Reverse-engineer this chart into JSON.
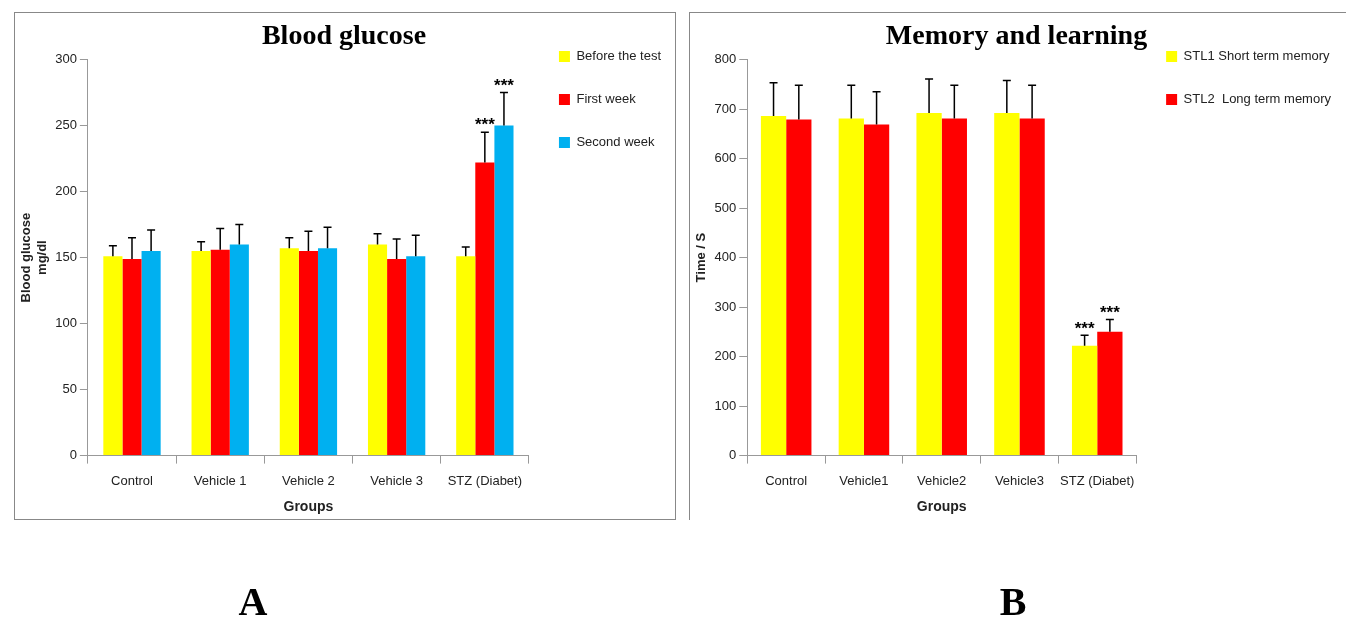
{
  "chart_data": [
    {
      "type": "bar",
      "title": "Blood glucose",
      "xlabel": "Groups",
      "ylabel": "Blood glucose\nmg/dl",
      "categories": [
        "Control",
        "Vehicle 1",
        "Vehicle 2",
        "Vehicle 3",
        "STZ (Diabet)"
      ],
      "series": [
        {
          "name": "Before the test",
          "color": "#ffff00",
          "values": [
            151,
            155,
            157,
            160,
            151
          ],
          "errors": [
            8,
            7,
            8,
            8,
            7
          ]
        },
        {
          "name": "First week",
          "color": "#ff0000",
          "values": [
            149,
            156,
            155,
            149,
            222
          ],
          "errors": [
            16,
            16,
            15,
            15,
            23
          ]
        },
        {
          "name": "Second week",
          "color": "#00b0f0",
          "values": [
            155,
            160,
            157,
            151,
            250
          ],
          "errors": [
            16,
            15,
            16,
            16,
            25
          ]
        }
      ],
      "ylim": [
        0,
        300
      ],
      "yticks": [
        0,
        50,
        100,
        150,
        200,
        250,
        300
      ],
      "legend": "right",
      "annotations": [
        {
          "text": "***",
          "x": "STZ (Diabet)",
          "y": 245
        },
        "***",
        "A"
      ]
    },
    {
      "type": "bar",
      "title": "Memory and learning",
      "xlabel": "Groups",
      "ylabel": "Time / S",
      "categories": [
        "Control",
        "Vehicle1",
        "Vehicle2",
        "Vehicle3",
        "STZ (Diabet)"
      ],
      "series": [
        {
          "name": "STL1 Short term memory",
          "color": "#ffff00",
          "values": [
            686,
            681,
            692,
            692,
            222
          ],
          "errors": [
            67,
            67,
            69,
            66,
            21
          ]
        },
        {
          "name": "STL2  Long term memory",
          "color": "#ff0000",
          "values": [
            679,
            669,
            681,
            681,
            250
          ],
          "errors": [
            69,
            66,
            67,
            67,
            25
          ]
        }
      ],
      "ylim": [
        0,
        800
      ],
      "yticks": [
        0,
        100,
        200,
        300,
        400,
        500,
        600,
        700,
        800
      ],
      "legend": "right",
      "annotations": [
        {
          "text": "***",
          "x": "STZ (Diabet)",
          "y": 243
        },
        "***",
        "B"
      ]
    }
  ]
}
